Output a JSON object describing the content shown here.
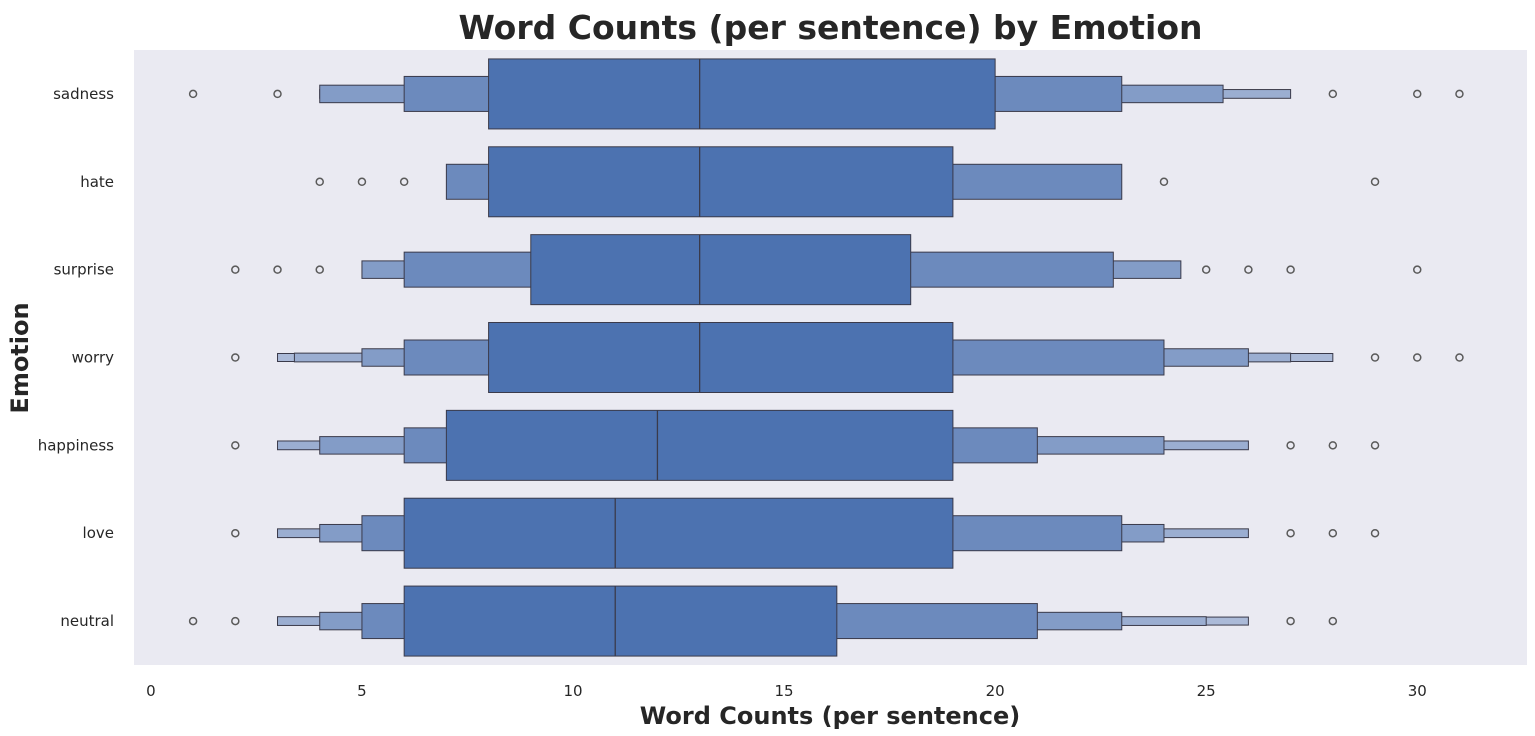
{
  "chart_data": {
    "type": "boxen",
    "orientation": "horizontal",
    "title": "Word Counts (per sentence) by Emotion",
    "xlabel": "Word Counts (per sentence)",
    "ylabel": "Emotion",
    "xlim": [
      -0.4,
      32.6
    ],
    "xticks": [
      0,
      5,
      10,
      15,
      20,
      25,
      30
    ],
    "grid": false,
    "colors": {
      "background": "#eaeaf2",
      "box": "#4c72b0",
      "edge": "#3a3a4a",
      "outlier": "#5a5a5a"
    },
    "categories": [
      "sadness",
      "hate",
      "surprise",
      "worry",
      "happiness",
      "love",
      "neutral"
    ],
    "series": [
      {
        "category": "sadness",
        "median": 13,
        "boxes": [
          [
            8,
            20
          ],
          [
            6,
            23
          ],
          [
            4,
            25.4
          ],
          [
            4,
            27
          ]
        ],
        "outliers": [
          1,
          3,
          28,
          30,
          31
        ]
      },
      {
        "category": "hate",
        "median": 13,
        "boxes": [
          [
            8,
            19
          ],
          [
            7,
            23
          ]
        ],
        "outliers": [
          4,
          5,
          6,
          24,
          29
        ]
      },
      {
        "category": "surprise",
        "median": 13,
        "boxes": [
          [
            9,
            18
          ],
          [
            6,
            22.8
          ],
          [
            5,
            24.4
          ]
        ],
        "outliers": [
          2,
          3,
          4,
          25,
          26,
          27,
          30
        ]
      },
      {
        "category": "worry",
        "median": 13,
        "boxes": [
          [
            8,
            19
          ],
          [
            6,
            24
          ],
          [
            5,
            26
          ],
          [
            3.4,
            27
          ],
          [
            3,
            28
          ]
        ],
        "outliers": [
          2,
          29,
          30,
          31
        ]
      },
      {
        "category": "happiness",
        "median": 12,
        "boxes": [
          [
            7,
            19
          ],
          [
            6,
            21
          ],
          [
            4,
            24
          ],
          [
            3,
            26
          ]
        ],
        "outliers": [
          2,
          27,
          28,
          29
        ]
      },
      {
        "category": "love",
        "median": 11,
        "boxes": [
          [
            6,
            19
          ],
          [
            5,
            23
          ],
          [
            4,
            24
          ],
          [
            3,
            26
          ]
        ],
        "outliers": [
          2,
          27,
          28,
          29
        ]
      },
      {
        "category": "neutral",
        "median": 11,
        "boxes": [
          [
            6,
            16.25
          ],
          [
            5,
            21
          ],
          [
            4,
            23
          ],
          [
            3,
            25
          ],
          [
            3,
            26
          ]
        ],
        "outliers": [
          1,
          2,
          27,
          28
        ]
      }
    ]
  }
}
